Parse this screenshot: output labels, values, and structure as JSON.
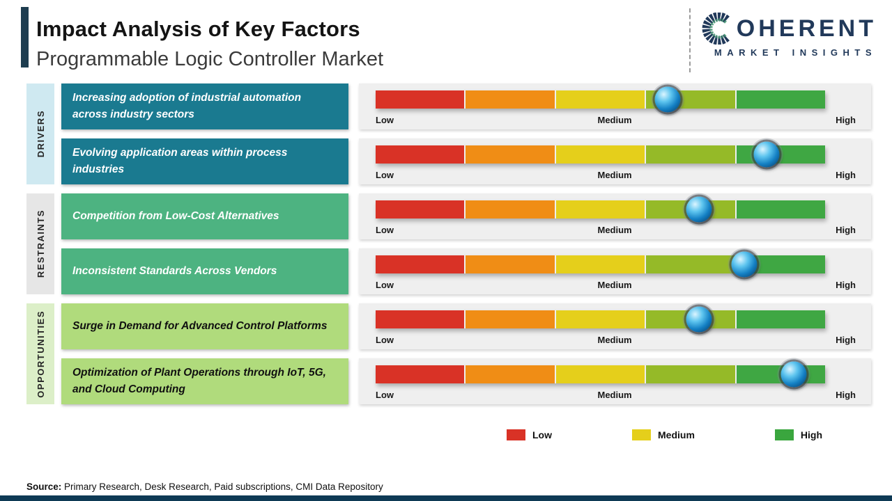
{
  "header": {
    "title": "Impact Analysis of Key Factors",
    "subtitle": "Programmable Logic Controller Market"
  },
  "logo": {
    "name": "COHERENT",
    "wordmark_rest": "OHERENT",
    "tagline": "MARKET INSIGHTS",
    "color": "#21395a"
  },
  "colors": {
    "header_accent": "#1e3d50",
    "footer_bar": "#0e3a55"
  },
  "bar": {
    "segment_colors": [
      "#d93226",
      "#f08d15",
      "#e5cf1b",
      "#95ba28",
      "#3fa743"
    ],
    "labels": {
      "low": "Low",
      "medium": "Medium",
      "high": "High"
    }
  },
  "groups": [
    {
      "label": "DRIVERS",
      "label_bg": "#cfe9f1",
      "box_bg": "#1a7a90",
      "box_text": "#ffffff",
      "rows": [
        {
          "text": "Increasing adoption of industrial automation across industry sectors",
          "impact_percent": 65
        },
        {
          "text": "Evolving application areas within process industries",
          "impact_percent": 87
        }
      ]
    },
    {
      "label": "RESTRAINTS",
      "label_bg": "#e6e6e6",
      "box_bg": "#4db381",
      "box_text": "#ffffff",
      "rows": [
        {
          "text": "Competition from Low-Cost Alternatives",
          "impact_percent": 72
        },
        {
          "text": "Inconsistent Standards Across Vendors",
          "impact_percent": 82
        }
      ]
    },
    {
      "label": "OPPORTUNITIES",
      "label_bg": "#dcefc8",
      "box_bg": "#b0db7c",
      "box_text": "#101010",
      "rows": [
        {
          "text": "Surge in Demand for Advanced Control Platforms",
          "impact_percent": 72
        },
        {
          "text": "Optimization of Plant Operations through IoT, 5G, and Cloud Computing",
          "impact_percent": 93
        }
      ]
    }
  ],
  "legend": [
    {
      "label": "Low",
      "color": "#d93226"
    },
    {
      "label": "Medium",
      "color": "#e5cf1b"
    },
    {
      "label": "High",
      "color": "#3aa63e"
    }
  ],
  "source": {
    "label": "Source:",
    "text": "Primary Research, Desk Research, Paid subscriptions, CMI Data Repository"
  },
  "chart_data": {
    "type": "bar",
    "orientation": "horizontal",
    "title": "Impact Analysis of Key Factors",
    "subtitle": "Programmable Logic Controller Market",
    "scale": {
      "min_label": "Low",
      "mid_label": "Medium",
      "max_label": "High",
      "range": [
        0,
        100
      ]
    },
    "categories": [
      "Increasing adoption of industrial automation across industry sectors",
      "Evolving application areas within process industries",
      "Competition from Low-Cost Alternatives",
      "Inconsistent Standards Across Vendors",
      "Surge in Demand for Advanced Control Platforms",
      "Optimization of Plant Operations through IoT, 5G, and Cloud Computing"
    ],
    "category_groups": [
      "Drivers",
      "Drivers",
      "Restraints",
      "Restraints",
      "Opportunities",
      "Opportunities"
    ],
    "values": [
      65,
      87,
      72,
      82,
      72,
      93
    ],
    "value_meaning": "marker position on Low(0) to High(100) impact scale, estimated from marker placement",
    "legend": [
      "Low",
      "Medium",
      "High"
    ],
    "legend_position": "bottom",
    "grid": false
  }
}
